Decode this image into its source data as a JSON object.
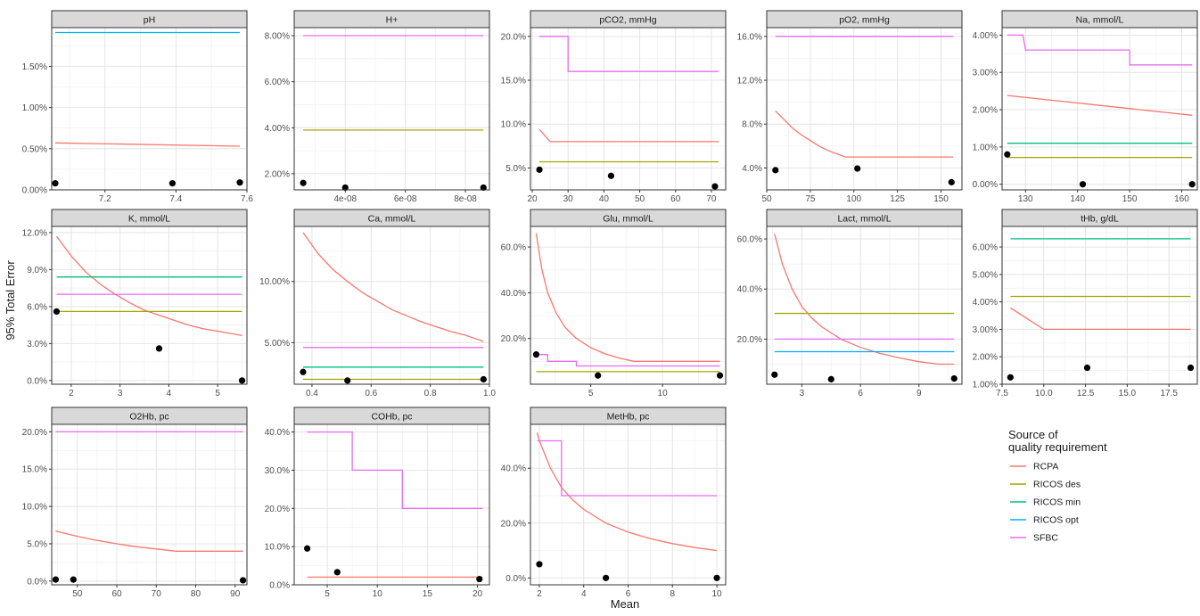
{
  "ylabel": "95% Total Error",
  "xlabel": "Mean",
  "legend": {
    "title_line1": "Source of",
    "title_line2": "quality requirement",
    "entries": [
      {
        "name": "RCPA",
        "color": "#F8766D"
      },
      {
        "name": "RICOS des",
        "color": "#A3A500"
      },
      {
        "name": "RICOS min",
        "color": "#00BF7D"
      },
      {
        "name": "RICOS opt",
        "color": "#00B0F6"
      },
      {
        "name": "SFBC",
        "color": "#E76BF3"
      }
    ]
  },
  "chart_data": [
    {
      "title": "pH",
      "type": "line",
      "xlim": [
        7.05,
        7.6
      ],
      "ylim": [
        0,
        1.97
      ],
      "xticks": [
        7.2,
        7.4,
        7.6
      ],
      "xtick_labels": [
        "7.2",
        "7.4",
        "7.6"
      ],
      "yticks": [
        0,
        0.5,
        1.0,
        1.5
      ],
      "ytick_labels": [
        "0.00%",
        "0.50%",
        "1.00%",
        "1.50%"
      ],
      "series": [
        {
          "name": "RICOS opt",
          "x": [
            7.06,
            7.58
          ],
          "y": [
            1.91,
            1.91
          ]
        },
        {
          "name": "RCPA",
          "x": [
            7.06,
            7.58
          ],
          "y": [
            0.57,
            0.53
          ]
        }
      ],
      "points": [
        [
          7.06,
          0.08
        ],
        [
          7.39,
          0.08
        ],
        [
          7.58,
          0.09
        ]
      ]
    },
    {
      "title": "H+",
      "type": "line",
      "xlim": [
        2.3e-08,
        8.8e-08
      ],
      "ylim": [
        1.3,
        8.35
      ],
      "xticks": [
        4e-08,
        6e-08,
        8e-08
      ],
      "xtick_labels": [
        "4e-08",
        "6e-08",
        "8e-08"
      ],
      "yticks": [
        2,
        4,
        6,
        8
      ],
      "ytick_labels": [
        "2.00%",
        "4.00%",
        "6.00%",
        "8.00%"
      ],
      "series": [
        {
          "name": "SFBC",
          "x": [
            2.6e-08,
            8.6e-08
          ],
          "y": [
            8.0,
            8.0
          ]
        },
        {
          "name": "RICOS des",
          "x": [
            2.6e-08,
            8.6e-08
          ],
          "y": [
            3.9,
            3.9
          ]
        }
      ],
      "points": [
        [
          2.6e-08,
          1.6
        ],
        [
          4e-08,
          1.4
        ],
        [
          8.6e-08,
          1.4
        ]
      ]
    },
    {
      "title": "pCO2, mmHg",
      "type": "line",
      "xlim": [
        19.5,
        74
      ],
      "ylim": [
        2.5,
        21
      ],
      "xticks": [
        20,
        30,
        40,
        50,
        60,
        70
      ],
      "xtick_labels": [
        "20",
        "30",
        "40",
        "50",
        "60",
        "70"
      ],
      "yticks": [
        5,
        10,
        15,
        20
      ],
      "ytick_labels": [
        "5.0%",
        "10.0%",
        "15.0%",
        "20.0%"
      ],
      "series": [
        {
          "name": "SFBC",
          "x": [
            22,
            30,
            30,
            72
          ],
          "y": [
            20,
            20,
            16,
            16
          ]
        },
        {
          "name": "RCPA",
          "x": [
            22,
            25,
            72
          ],
          "y": [
            9.4,
            8.0,
            8.0
          ]
        },
        {
          "name": "RICOS des",
          "x": [
            22,
            72
          ],
          "y": [
            5.7,
            5.7
          ]
        }
      ],
      "points": [
        [
          22,
          4.8
        ],
        [
          42,
          4.1
        ],
        [
          71,
          2.9
        ]
      ]
    },
    {
      "title": "pO2, mmHg",
      "type": "line",
      "xlim": [
        50,
        162
      ],
      "ylim": [
        2.0,
        16.8
      ],
      "xticks": [
        50,
        75,
        100,
        125,
        150
      ],
      "xtick_labels": [
        "50",
        "75",
        "100",
        "125",
        "150"
      ],
      "yticks": [
        4,
        8,
        12,
        16
      ],
      "ytick_labels": [
        "4.0%",
        "8.0%",
        "12.0%",
        "16.0%"
      ],
      "series": [
        {
          "name": "SFBC",
          "x": [
            55,
            157
          ],
          "y": [
            16,
            16
          ]
        },
        {
          "name": "RCPA",
          "x": [
            55,
            60,
            65,
            70,
            75,
            80,
            85,
            90,
            95,
            100,
            157
          ],
          "y": [
            9.2,
            8.4,
            7.6,
            7.0,
            6.5,
            6.0,
            5.6,
            5.3,
            5.0,
            5.0,
            5.0
          ]
        }
      ],
      "points": [
        [
          55,
          3.8
        ],
        [
          102,
          3.95
        ],
        [
          156,
          2.7
        ]
      ]
    },
    {
      "title": "Na, mmol/L",
      "type": "line",
      "xlim": [
        125.5,
        163
      ],
      "ylim": [
        -0.15,
        4.2
      ],
      "xticks": [
        130,
        140,
        150,
        160
      ],
      "xtick_labels": [
        "130",
        "140",
        "150",
        "160"
      ],
      "yticks": [
        0,
        1,
        2,
        3,
        4
      ],
      "ytick_labels": [
        "0.00%",
        "1.00%",
        "2.00%",
        "3.00%",
        "4.00%"
      ],
      "series": [
        {
          "name": "SFBC",
          "x": [
            126.5,
            129.5,
            130,
            150,
            150,
            162
          ],
          "y": [
            4.0,
            4.0,
            3.6,
            3.6,
            3.2,
            3.2
          ]
        },
        {
          "name": "RCPA",
          "x": [
            126.5,
            162
          ],
          "y": [
            2.38,
            1.85
          ]
        },
        {
          "name": "RICOS min",
          "x": [
            126.5,
            162
          ],
          "y": [
            1.1,
            1.1
          ]
        },
        {
          "name": "RICOS des",
          "x": [
            126.5,
            162
          ],
          "y": [
            0.72,
            0.72
          ]
        }
      ],
      "points": [
        [
          126.5,
          0.8
        ],
        [
          141,
          0.0
        ],
        [
          162,
          0.0
        ]
      ]
    },
    {
      "title": "K, mmol/L",
      "type": "line",
      "xlim": [
        1.6,
        5.6
      ],
      "ylim": [
        -0.3,
        12.5
      ],
      "xticks": [
        2,
        3,
        4,
        5
      ],
      "xtick_labels": [
        "2",
        "3",
        "4",
        "5"
      ],
      "yticks": [
        0,
        3,
        6,
        9,
        12
      ],
      "ytick_labels": [
        "0.0%",
        "3.0%",
        "6.0%",
        "9.0%",
        "12.0%"
      ],
      "series": [
        {
          "name": "RCPA",
          "x": [
            1.7,
            2.0,
            2.3,
            2.6,
            2.9,
            3.2,
            3.5,
            3.8,
            4.1,
            4.4,
            4.7,
            5.0,
            5.5
          ],
          "y": [
            11.7,
            10.1,
            8.8,
            7.8,
            7.0,
            6.3,
            5.7,
            5.3,
            4.9,
            4.5,
            4.2,
            4.0,
            3.65
          ]
        },
        {
          "name": "RICOS min",
          "x": [
            1.7,
            5.5
          ],
          "y": [
            8.4,
            8.4
          ]
        },
        {
          "name": "SFBC",
          "x": [
            1.7,
            5.5
          ],
          "y": [
            7.0,
            7.0
          ]
        },
        {
          "name": "RICOS des",
          "x": [
            1.7,
            5.5
          ],
          "y": [
            5.6,
            5.6
          ]
        }
      ],
      "points": [
        [
          1.7,
          5.6
        ],
        [
          3.8,
          2.6
        ],
        [
          5.5,
          0.0
        ]
      ]
    },
    {
      "title": "Ca, mmol/L",
      "type": "line",
      "xlim": [
        0.34,
        1.0
      ],
      "ylim": [
        1.6,
        14.5
      ],
      "xticks": [
        0.4,
        0.6,
        0.8,
        1.0
      ],
      "xtick_labels": [
        "0.4",
        "0.6",
        "0.8",
        "1.0"
      ],
      "yticks": [
        5,
        10
      ],
      "ytick_labels": [
        "5.00%",
        "10.00%"
      ],
      "series": [
        {
          "name": "RCPA",
          "x": [
            0.37,
            0.42,
            0.47,
            0.52,
            0.57,
            0.62,
            0.67,
            0.72,
            0.77,
            0.82,
            0.87,
            0.92,
            0.98
          ],
          "y": [
            14.0,
            12.3,
            11.0,
            10.0,
            9.1,
            8.4,
            7.7,
            7.2,
            6.7,
            6.3,
            5.9,
            5.6,
            5.1
          ]
        },
        {
          "name": "SFBC",
          "x": [
            0.37,
            0.98
          ],
          "y": [
            4.6,
            4.6
          ]
        },
        {
          "name": "RICOS min",
          "x": [
            0.37,
            0.98
          ],
          "y": [
            3.0,
            3.0
          ]
        },
        {
          "name": "RICOS des",
          "x": [
            0.37,
            0.98
          ],
          "y": [
            2.0,
            2.0
          ]
        }
      ],
      "points": [
        [
          0.37,
          2.6
        ],
        [
          0.52,
          1.9
        ],
        [
          0.98,
          2.0
        ]
      ]
    },
    {
      "title": "Glu, mmol/L",
      "type": "line",
      "xlim": [
        0.8,
        14.4
      ],
      "ylim": [
        0,
        69
      ],
      "xticks": [
        5,
        10
      ],
      "xtick_labels": [
        "5",
        "10"
      ],
      "yticks": [
        20,
        40,
        60
      ],
      "ytick_labels": [
        "20.0%",
        "40.0%",
        "60.0%"
      ],
      "series": [
        {
          "name": "RCPA",
          "x": [
            1.2,
            1.6,
            2.0,
            2.6,
            3.2,
            4.0,
            5.0,
            6.0,
            7.0,
            8.0,
            9.0,
            10.0,
            14.0
          ],
          "y": [
            66,
            50,
            40,
            31,
            25,
            20,
            16,
            13.3,
            11.4,
            10,
            10,
            10,
            10
          ]
        },
        {
          "name": "SFBC",
          "x": [
            1.2,
            2.0,
            2.0,
            4.0,
            4.0,
            14.0
          ],
          "y": [
            13,
            13,
            10,
            10,
            8,
            8
          ]
        },
        {
          "name": "RICOS des",
          "x": [
            1.2,
            14.0
          ],
          "y": [
            5.5,
            5.5
          ]
        }
      ],
      "points": [
        [
          1.2,
          13.0
        ],
        [
          5.5,
          3.8
        ],
        [
          14.0,
          3.8
        ]
      ]
    },
    {
      "title": "Lact, mmol/L",
      "type": "line",
      "xlim": [
        1.2,
        11.2
      ],
      "ylim": [
        2,
        65
      ],
      "xticks": [
        3,
        6,
        9
      ],
      "xtick_labels": [
        "3",
        "6",
        "9"
      ],
      "yticks": [
        20,
        40,
        60
      ],
      "ytick_labels": [
        "20.0%",
        "40.0%",
        "60.0%"
      ],
      "series": [
        {
          "name": "RCPA",
          "x": [
            1.6,
            2.0,
            2.5,
            3.0,
            3.5,
            4.0,
            5.0,
            6.0,
            7.0,
            8.0,
            9.0,
            10.0,
            10.8
          ],
          "y": [
            62,
            50,
            40,
            33,
            28.5,
            25,
            20,
            16.7,
            14.3,
            12.5,
            11,
            10,
            10
          ]
        },
        {
          "name": "RICOS des",
          "x": [
            1.6,
            10.8
          ],
          "y": [
            30.3,
            30.3
          ]
        },
        {
          "name": "SFBC",
          "x": [
            1.6,
            10.8
          ],
          "y": [
            20,
            20
          ]
        },
        {
          "name": "RICOS opt",
          "x": [
            1.6,
            10.8
          ],
          "y": [
            15,
            15
          ]
        }
      ],
      "points": [
        [
          1.6,
          5.8
        ],
        [
          4.5,
          4.0
        ],
        [
          10.8,
          4.3
        ]
      ]
    },
    {
      "title": "tHb, g/dL",
      "type": "line",
      "xlim": [
        7.5,
        19.2
      ],
      "ylim": [
        1.0,
        6.75
      ],
      "xticks": [
        7.5,
        10,
        12.5,
        15,
        17.5
      ],
      "xtick_labels": [
        "7.5",
        "10.0",
        "12.5",
        "15.0",
        "17.5"
      ],
      "yticks": [
        1,
        2,
        3,
        4,
        5,
        6
      ],
      "ytick_labels": [
        "1.00%",
        "2.00%",
        "3.00%",
        "4.00%",
        "5.00%",
        "6.00%"
      ],
      "series": [
        {
          "name": "RICOS min",
          "x": [
            8.0,
            18.8
          ],
          "y": [
            6.3,
            6.3
          ]
        },
        {
          "name": "RICOS des",
          "x": [
            8.0,
            18.8
          ],
          "y": [
            4.2,
            4.2
          ]
        },
        {
          "name": "RCPA",
          "x": [
            8.0,
            10.0,
            18.8
          ],
          "y": [
            3.78,
            3.0,
            3.0
          ]
        }
      ],
      "points": [
        [
          8.0,
          1.25
        ],
        [
          12.6,
          1.6
        ],
        [
          18.8,
          1.6
        ]
      ]
    },
    {
      "title": "O2Hb, pc",
      "type": "line",
      "xlim": [
        43.5,
        93
      ],
      "ylim": [
        -0.5,
        21
      ],
      "xticks": [
        50,
        60,
        70,
        80,
        90
      ],
      "xtick_labels": [
        "50",
        "60",
        "70",
        "80",
        "90"
      ],
      "yticks": [
        0,
        5,
        10,
        15,
        20
      ],
      "ytick_labels": [
        "0.0%",
        "5.0%",
        "10.0%",
        "15.0%",
        "20.0%"
      ],
      "series": [
        {
          "name": "SFBC",
          "x": [
            44.5,
            92
          ],
          "y": [
            20,
            20
          ]
        },
        {
          "name": "RCPA",
          "x": [
            44.5,
            50,
            55,
            60,
            65,
            70,
            75,
            92
          ],
          "y": [
            6.7,
            6.0,
            5.45,
            5.0,
            4.6,
            4.3,
            4.0,
            4.0
          ]
        }
      ],
      "points": [
        [
          44.5,
          0.2
        ],
        [
          49,
          0.2
        ],
        [
          92,
          0.1
        ]
      ]
    },
    {
      "title": "COHb, pc",
      "type": "line",
      "xlim": [
        1.7,
        21.2
      ],
      "ylim": [
        0,
        42
      ],
      "xticks": [
        5,
        10,
        15,
        20
      ],
      "xtick_labels": [
        "5",
        "10",
        "15",
        "20"
      ],
      "yticks": [
        0,
        10,
        20,
        30,
        40
      ],
      "ytick_labels": [
        "0.0%",
        "10.0%",
        "20.0%",
        "30.0%",
        "40.0%"
      ],
      "series": [
        {
          "name": "SFBC",
          "x": [
            3.0,
            7.5,
            7.5,
            12.5,
            12.5,
            20.5
          ],
          "y": [
            40,
            40,
            30,
            30,
            20,
            20
          ]
        },
        {
          "name": "RCPA",
          "x": [
            3.0,
            20.5
          ],
          "y": [
            2.0,
            2.0
          ]
        }
      ],
      "points": [
        [
          3.0,
          9.5
        ],
        [
          6.0,
          3.3
        ],
        [
          20.2,
          1.5
        ]
      ]
    },
    {
      "title": "MetHb, pc",
      "type": "line",
      "xlim": [
        1.6,
        10.4
      ],
      "ylim": [
        -2.5,
        56
      ],
      "xticks": [
        2,
        4,
        6,
        8,
        10
      ],
      "xtick_labels": [
        "2",
        "4",
        "6",
        "8",
        "10"
      ],
      "yticks": [
        0,
        20,
        40
      ],
      "ytick_labels": [
        "0.0%",
        "20.0%",
        "40.0%"
      ],
      "series": [
        {
          "name": "RCPA",
          "x": [
            1.9,
            2.0,
            2.5,
            3.0,
            3.5,
            4.0,
            5.0,
            6.0,
            7.0,
            8.0,
            9.0,
            10.0
          ],
          "y": [
            53,
            50,
            40,
            33,
            28.5,
            25,
            20,
            16.7,
            14.3,
            12.5,
            11.1,
            10
          ]
        },
        {
          "name": "SFBC",
          "x": [
            1.9,
            3.0,
            3.0,
            10.0
          ],
          "y": [
            50,
            50,
            30,
            30
          ]
        }
      ],
      "points": [
        [
          2.0,
          5.0
        ],
        [
          5.0,
          0.0
        ],
        [
          10.0,
          0.0
        ]
      ]
    }
  ]
}
